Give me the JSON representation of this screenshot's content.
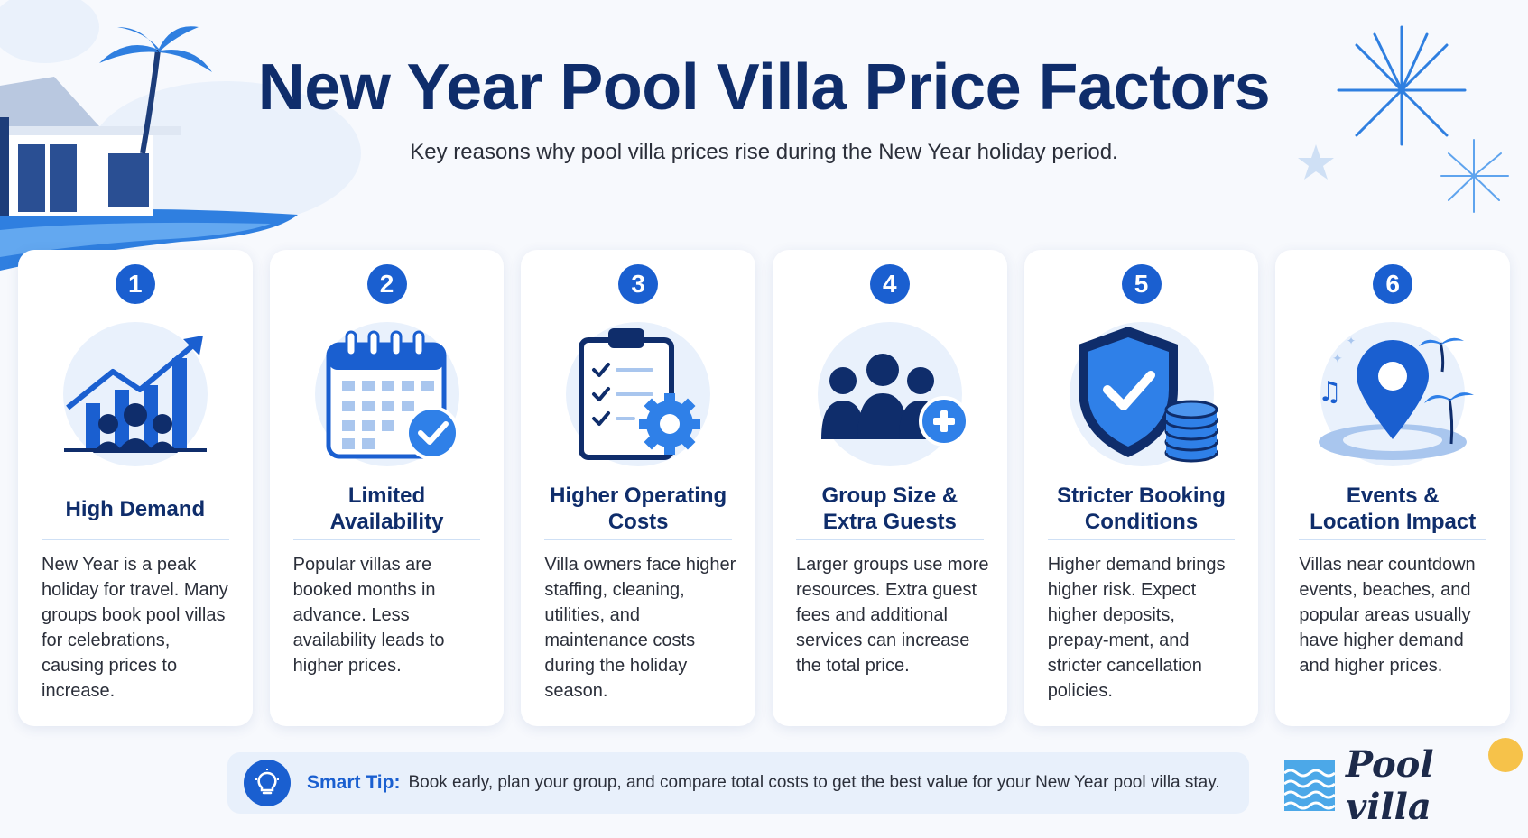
{
  "header": {
    "title": "New Year Pool Villa Price Factors",
    "subtitle": "Key reasons why pool villa prices rise during the New Year holiday period."
  },
  "cards": [
    {
      "number": "1",
      "icon": "rising-chart-group-icon",
      "title": "High Demand",
      "body": "New Year is a peak holiday for travel. Many groups book pool villas for celebrations, causing prices to increase."
    },
    {
      "number": "2",
      "icon": "calendar-check-icon",
      "title": "Limited Availability",
      "body": "Popular villas are booked months in advance. Less availability leads to higher prices."
    },
    {
      "number": "3",
      "icon": "clipboard-gear-icon",
      "title": "Higher Operating Costs",
      "body": "Villa owners face higher staffing, cleaning, utilities, and maintenance costs during the holiday season."
    },
    {
      "number": "4",
      "icon": "group-plus-icon",
      "title": "Group Size & Extra Guests",
      "body": "Larger groups use more resources. Extra guest fees and additional services can increase the total price."
    },
    {
      "number": "5",
      "icon": "shield-coins-icon",
      "title": "Stricter Booking Conditions",
      "body": "Higher demand brings higher risk. Expect higher deposits, prepay-ment, and stricter cancellation policies."
    },
    {
      "number": "6",
      "icon": "location-pin-icon",
      "title": "Events & Location Impact",
      "body": "Villas near countdown events, beaches, and popular areas usually have higher demand and higher prices."
    }
  ],
  "tip": {
    "label": "Smart Tip:",
    "text": "Book early, plan your group, and compare total costs to get the best value for your New Year pool villa stay.",
    "icon": "lightbulb-icon"
  },
  "logo": {
    "text": "Pool villa",
    "icon": "wave-icon"
  },
  "colors": {
    "primary": "#1a5fd0",
    "title": "#0f2d6b",
    "accent_sun": "#f6c24a"
  }
}
